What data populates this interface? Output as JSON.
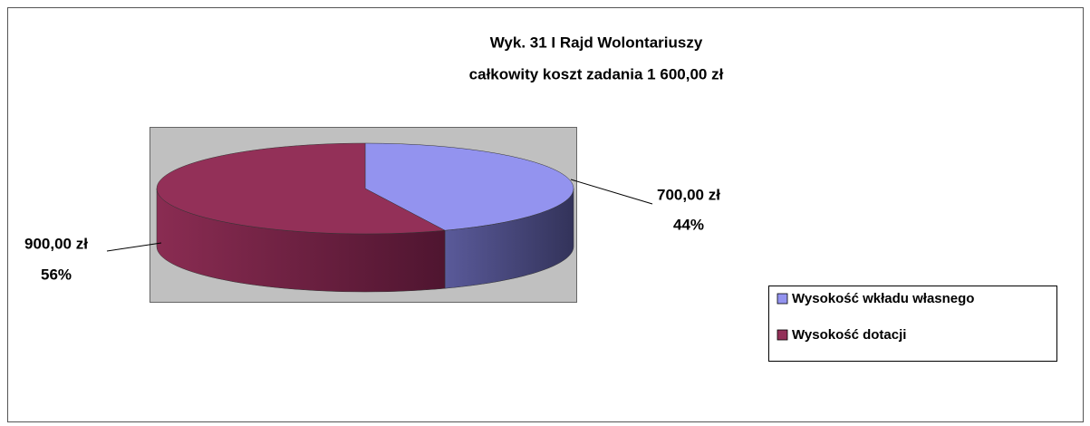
{
  "chart_data": {
    "type": "pie",
    "title": "Wyk. 31 I Rajd Wolontariuszy",
    "subtitle": "całkowity koszt zadania 1 600,00 zł",
    "categories": [
      "Wysokość wkładu własnego",
      "Wysokość dotacji"
    ],
    "values": [
      700,
      900
    ],
    "value_labels": [
      "700,00 zł",
      "900,00 zł"
    ],
    "percent_labels": [
      "44%",
      "56%"
    ],
    "colors": [
      "#9393ef",
      "#933058"
    ],
    "legend": "right"
  }
}
